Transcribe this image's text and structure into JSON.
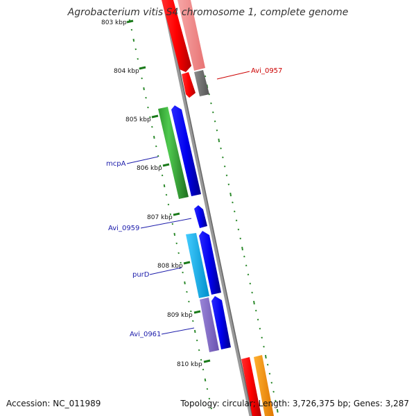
{
  "title": "Agrobacterium vitis S4 chromosome 1, complete genome",
  "accession_text": "Accession: NC_011989",
  "topology_text": "Topology: circular; Length: 3,726,375 bp; Genes: 3,287",
  "colors": {
    "backbone": "#888888",
    "gc_ticks": "#2e8b2e",
    "label_blue": "#1a1aaa",
    "label_red": "#cc0000"
  },
  "ticks": [
    {
      "label": "803 kbp"
    },
    {
      "label": "804 kbp"
    },
    {
      "label": "805 kbp"
    },
    {
      "label": "806 kbp"
    },
    {
      "label": "807 kbp"
    },
    {
      "label": "808 kbp"
    },
    {
      "label": "809 kbp"
    },
    {
      "label": "810 kbp"
    }
  ],
  "gene_labels": [
    {
      "text": "Avi_0957"
    },
    {
      "text": "mcpA"
    },
    {
      "text": "Avi_0959"
    },
    {
      "text": "purD"
    },
    {
      "text": "Avi_0961"
    }
  ]
}
